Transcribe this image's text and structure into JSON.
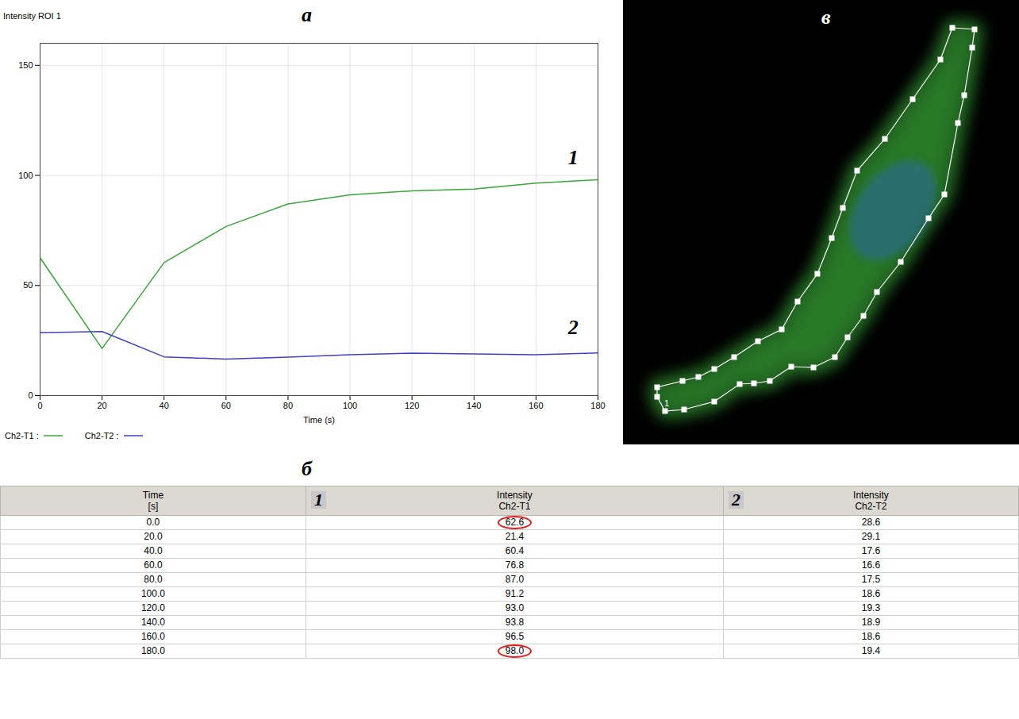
{
  "chart_data": {
    "type": "line",
    "panel": "а",
    "title": "Intensity ROI 1",
    "x_label": "Time (s)",
    "x": [
      0,
      20,
      40,
      60,
      80,
      100,
      120,
      140,
      160,
      180
    ],
    "series": [
      {
        "name": "Ch2-T1 :",
        "color": "#3aa63a",
        "values": [
          62.6,
          21.4,
          60.4,
          76.8,
          87.0,
          91.2,
          93.0,
          93.8,
          96.5,
          98.0
        ]
      },
      {
        "name": "Ch2-T2 :",
        "color": "#4040c0",
        "values": [
          28.6,
          29.1,
          17.6,
          16.6,
          17.5,
          18.6,
          19.3,
          18.9,
          18.6,
          19.4
        ]
      }
    ],
    "xlim": [
      0,
      180
    ],
    "xticks": [
      0,
      20,
      40,
      60,
      80,
      100,
      120,
      140,
      160,
      180
    ],
    "ylim": [
      0,
      160
    ],
    "yticks": [
      0,
      50,
      100,
      150
    ],
    "grid": true,
    "legend": "bottom",
    "annotations": [
      {
        "text": "1",
        "x": 172,
        "y": 108
      },
      {
        "text": "2",
        "x": 172,
        "y": 31
      }
    ]
  },
  "table": {
    "panel": "б",
    "columns": [
      {
        "header": [
          "Time",
          "[s]"
        ]
      },
      {
        "badge": "1",
        "header": [
          "Intensity",
          "Ch2-T1"
        ]
      },
      {
        "badge": "2",
        "header": [
          "Intensity",
          "Ch2-T2"
        ]
      }
    ],
    "rows": [
      [
        "0.0",
        "62.6",
        "28.6"
      ],
      [
        "20.0",
        "21.4",
        "29.1"
      ],
      [
        "40.0",
        "60.4",
        "17.6"
      ],
      [
        "60.0",
        "76.8",
        "16.6"
      ],
      [
        "80.0",
        "87.0",
        "17.5"
      ],
      [
        "100.0",
        "91.2",
        "18.6"
      ],
      [
        "120.0",
        "93.0",
        "19.3"
      ],
      [
        "140.0",
        "93.8",
        "18.9"
      ],
      [
        "160.0",
        "96.5",
        "18.6"
      ],
      [
        "180.0",
        "98.0",
        "19.4"
      ]
    ],
    "circled": [
      [
        0,
        1
      ],
      [
        9,
        1
      ]
    ]
  },
  "image": {
    "panel": "в",
    "roi_label": "1"
  }
}
